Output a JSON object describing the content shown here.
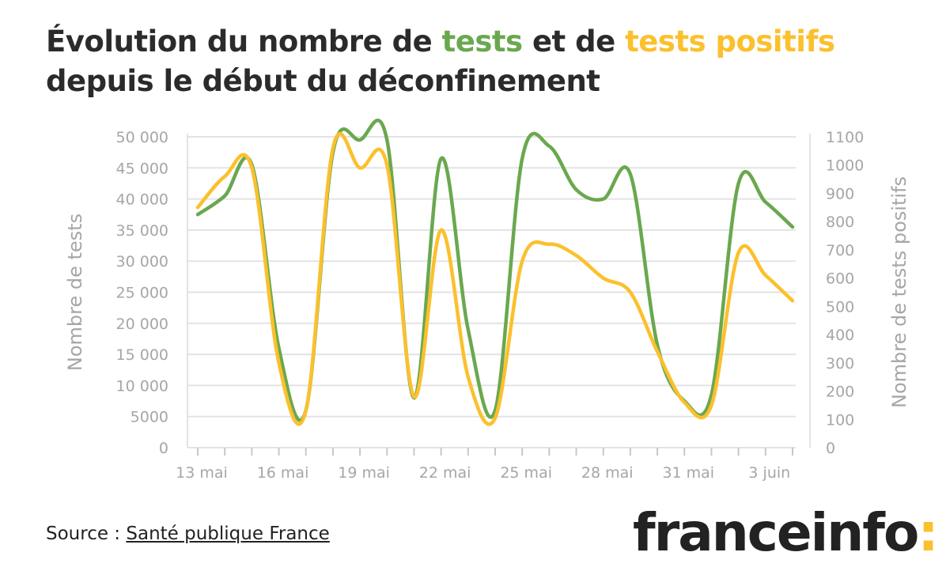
{
  "title": {
    "part1": "Évolution du nombre de ",
    "tests": "tests",
    "part2": " et de ",
    "positive": "tests positifs",
    "line2": "depuis le début du déconfinement"
  },
  "source": {
    "prefix": "Source : ",
    "link": "Santé publique France"
  },
  "logo": {
    "text": "franceinfo",
    "colon": ":"
  },
  "colors": {
    "tests": "#6aa84f",
    "positive": "#fbc02d",
    "axis": "#a6a6a6",
    "grid": "#e3e3e3"
  },
  "chart_data": {
    "type": "line",
    "x": [
      "13 mai",
      "14 mai",
      "15 mai",
      "16 mai",
      "17 mai",
      "18 mai",
      "19 mai",
      "20 mai",
      "21 mai",
      "22 mai",
      "23 mai",
      "24 mai",
      "25 mai",
      "26 mai",
      "27 mai",
      "28 mai",
      "29 mai",
      "30 mai",
      "31 mai",
      "1 juin",
      "2 juin",
      "3 juin",
      "4 juin"
    ],
    "x_tick_labels": [
      "13 mai",
      "16 mai",
      "19 mai",
      "22 mai",
      "25 mai",
      "28 mai",
      "31 mai",
      "3 juin"
    ],
    "ylabel": "Nombre de tests",
    "y2label": "Nombre de tests positifs",
    "ylim": [
      0,
      50000
    ],
    "y2lim": [
      0,
      1100
    ],
    "y_ticks": [
      "0",
      "5000",
      "10 000",
      "15 000",
      "20 000",
      "25 000",
      "30 000",
      "35 000",
      "40 000",
      "45 000",
      "50 000"
    ],
    "y2_ticks": [
      "0",
      "100",
      "200",
      "300",
      "400",
      "500",
      "600",
      "700",
      "800",
      "900",
      "1000",
      "1100"
    ],
    "grid": true,
    "series": [
      {
        "axis": "left",
        "values": [
          37500,
          40500,
          45500,
          16000,
          6000,
          47500,
          49500,
          49500,
          8000,
          46500,
          19000,
          6000,
          46500,
          48500,
          41500,
          40000,
          44000,
          16500,
          7500,
          8500,
          42500,
          39500,
          35500
        ]
      },
      {
        "axis": "right",
        "values": [
          850,
          960,
          990,
          300,
          130,
          1060,
          990,
          1000,
          180,
          770,
          250,
          105,
          660,
          720,
          680,
          600,
          550,
          340,
          160,
          150,
          690,
          610,
          520
        ]
      }
    ]
  }
}
